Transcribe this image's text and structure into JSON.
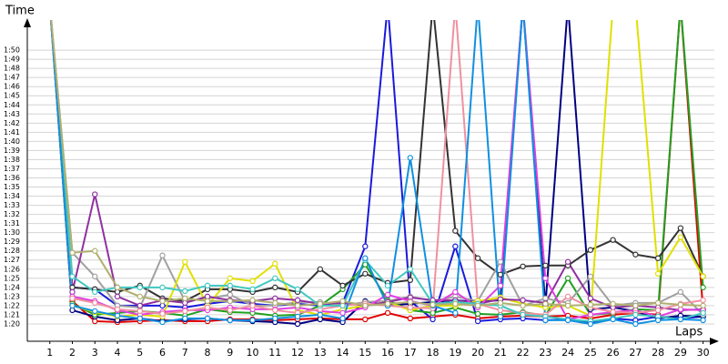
{
  "chart_data": {
    "type": "line",
    "y_label": "Time",
    "x_label": "Laps",
    "x": [
      1,
      2,
      3,
      4,
      5,
      6,
      7,
      8,
      9,
      10,
      11,
      12,
      13,
      14,
      15,
      16,
      17,
      18,
      19,
      20,
      21,
      22,
      23,
      24,
      25,
      26,
      27,
      28,
      29,
      30
    ],
    "xlim": [
      0,
      30.5
    ],
    "xticks": [
      1,
      2,
      3,
      4,
      5,
      6,
      7,
      8,
      9,
      10,
      11,
      12,
      13,
      14,
      15,
      16,
      17,
      18,
      19,
      20,
      21,
      22,
      23,
      24,
      25,
      26,
      27,
      28,
      29,
      30
    ],
    "ylim": [
      78.1,
      113.3
    ],
    "yticks": [
      {
        "value": 80,
        "label": "1:20"
      },
      {
        "value": 81,
        "label": "1:21"
      },
      {
        "value": 82,
        "label": "1:22"
      },
      {
        "value": 83,
        "label": "1:23"
      },
      {
        "value": 84,
        "label": "1:24"
      },
      {
        "value": 85,
        "label": "1:25"
      },
      {
        "value": 86,
        "label": "1:26"
      },
      {
        "value": 87,
        "label": "1:27"
      },
      {
        "value": 88,
        "label": "1:28"
      },
      {
        "value": 89,
        "label": "1:29"
      },
      {
        "value": 90,
        "label": "1:30"
      },
      {
        "value": 91,
        "label": "1:31"
      },
      {
        "value": 92,
        "label": "1:32"
      },
      {
        "value": 93,
        "label": "1:33"
      },
      {
        "value": 94,
        "label": "1:34"
      },
      {
        "value": 95,
        "label": "1:35"
      },
      {
        "value": 96,
        "label": "1:36"
      },
      {
        "value": 97,
        "label": "1:37"
      },
      {
        "value": 98,
        "label": "1:38"
      },
      {
        "value": 99,
        "label": "1:39"
      },
      {
        "value": 100,
        "label": "1:40"
      },
      {
        "value": 101,
        "label": "1:41"
      },
      {
        "value": 102,
        "label": "1:42"
      },
      {
        "value": 103,
        "label": "1:43"
      },
      {
        "value": 104,
        "label": "1:44"
      },
      {
        "value": 105,
        "label": "1:45"
      },
      {
        "value": 106,
        "label": "1:46"
      },
      {
        "value": 107,
        "label": "1:47"
      },
      {
        "value": 108,
        "label": "1:48"
      },
      {
        "value": 109,
        "label": "1:49"
      },
      {
        "value": 110,
        "label": "1:50"
      }
    ],
    "grid": true,
    "series": [
      {
        "color": "#e00000",
        "values": [
          115,
          82.5,
          80.3,
          80.2,
          80.3,
          80.4,
          80.3,
          80.3,
          80.5,
          80.5,
          80.4,
          80.5,
          80.6,
          80.5,
          80.5,
          81.2,
          80.6,
          80.8,
          81.0,
          80.6,
          80.8,
          80.9,
          80.8,
          80.9,
          80.6,
          81.0,
          81.2,
          81.0,
          115,
          81.5
        ]
      },
      {
        "color": "#1a1adc",
        "values": [
          115,
          84.0,
          83.8,
          82.0,
          82.0,
          82.0,
          81.8,
          82.2,
          82.5,
          82.2,
          82.0,
          82.2,
          82.0,
          82.3,
          88.5,
          115,
          82.5,
          80.5,
          88.5,
          80.3,
          80.5,
          80.6,
          80.4,
          80.5,
          80.2,
          80.6,
          80.4,
          80.8,
          80.6,
          80.8
        ]
      },
      {
        "color": "#000080",
        "values": [
          115,
          81.5,
          80.8,
          80.4,
          80.6,
          80.3,
          80.5,
          80.6,
          80.4,
          80.3,
          80.2,
          80.0,
          80.5,
          80.2,
          82.5,
          82.0,
          82.2,
          82.4,
          82.6,
          82.4,
          82.6,
          115,
          82.0,
          115,
          81.6,
          81.8,
          81.4,
          80.6,
          80.9,
          80.8
        ]
      },
      {
        "color": "#20a020",
        "values": [
          115,
          82.2,
          81.0,
          81.2,
          81.4,
          81.2,
          80.9,
          81.6,
          81.3,
          81.2,
          80.9,
          81.0,
          82.0,
          83.8,
          86.5,
          82.6,
          81.5,
          81.2,
          81.8,
          81.1,
          81.0,
          81.3,
          80.9,
          85.0,
          81.0,
          81.2,
          81.6,
          81.5,
          115,
          84.0
        ]
      },
      {
        "color": "#333333",
        "values": [
          115,
          84.0,
          83.8,
          83.5,
          84.2,
          82.8,
          82.5,
          83.8,
          83.8,
          83.5,
          84.0,
          83.5,
          86.0,
          84.2,
          85.5,
          84.5,
          84.8,
          115,
          90.2,
          87.2,
          85.4,
          86.3,
          86.4,
          86.4,
          88.1,
          89.2,
          87.6,
          87.2,
          90.5,
          85.2
        ]
      },
      {
        "color": "#a0a0a0",
        "values": [
          115,
          87.8,
          85.2,
          82.0,
          81.8,
          87.5,
          82.5,
          82.8,
          83.2,
          82.0,
          82.0,
          82.4,
          82.4,
          82.0,
          82.4,
          82.5,
          83.0,
          82.5,
          83.0,
          82.5,
          86.8,
          82.0,
          82.8,
          82.3,
          85.2,
          82.0,
          82.3,
          82.3,
          83.5,
          81.0
        ]
      },
      {
        "color": "#e0e000",
        "values": [
          115,
          82.0,
          81.3,
          80.8,
          81.0,
          80.8,
          86.8,
          82.0,
          85.0,
          84.7,
          86.6,
          81.5,
          81.0,
          81.6,
          82.0,
          82.4,
          81.5,
          82.0,
          82.0,
          82.5,
          82.9,
          82.2,
          81.8,
          82.0,
          80.9,
          115,
          115,
          85.5,
          89.5,
          85.2
        ]
      },
      {
        "color": "#9030a0",
        "values": [
          115,
          83.5,
          94.2,
          83.0,
          82.0,
          82.6,
          82.3,
          83.0,
          82.6,
          82.5,
          82.8,
          82.6,
          82.2,
          82.3,
          82.0,
          82.4,
          82.9,
          82.6,
          82.6,
          82.2,
          82.7,
          82.6,
          82.3,
          86.8,
          82.8,
          81.8,
          82.0,
          81.8,
          81.5,
          81.6
        ]
      },
      {
        "color": "#e040e0",
        "values": [
          115,
          83.0,
          82.5,
          81.5,
          81.0,
          81.3,
          81.5,
          81.5,
          81.8,
          81.6,
          81.6,
          81.8,
          81.4,
          81.2,
          81.8,
          83.2,
          82.5,
          82.0,
          83.5,
          81.8,
          84.2,
          115,
          85.0,
          80.5,
          81.0,
          81.3,
          81.5,
          80.8,
          81.6,
          81.5
        ]
      },
      {
        "color": "#f090a0",
        "values": [
          115,
          82.8,
          82.3,
          81.6,
          81.4,
          81.1,
          81.4,
          81.8,
          81.5,
          82.0,
          81.5,
          81.2,
          81.6,
          82.0,
          82.2,
          82.0,
          81.8,
          81.7,
          115,
          82.2,
          81.5,
          81.2,
          81.0,
          83.0,
          81.8,
          81.3,
          81.2,
          81.5,
          82.2,
          82.6
        ]
      },
      {
        "color": "#40c8c0",
        "values": [
          115,
          85.2,
          83.5,
          84.0,
          84.0,
          84.0,
          83.6,
          84.2,
          84.2,
          83.8,
          85.0,
          83.8,
          82.0,
          82.0,
          87.0,
          84.2,
          86.0,
          82.2,
          82.4,
          82.2,
          82.0,
          81.0,
          80.8,
          80.5,
          80.3,
          80.6,
          81.0,
          80.8,
          80.5,
          81.2
        ]
      },
      {
        "color": "#1090e0",
        "values": [
          115,
          82.0,
          81.4,
          80.9,
          80.6,
          80.2,
          80.6,
          80.6,
          80.4,
          80.4,
          80.6,
          80.8,
          81.0,
          80.6,
          87.2,
          82.0,
          98.2,
          82.0,
          81.2,
          115,
          80.8,
          115,
          80.4,
          80.4,
          80.0,
          80.5,
          80.0,
          80.4,
          80.5,
          80.4
        ]
      },
      {
        "color": "#b0b070",
        "values": [
          115,
          87.8,
          88.0,
          84.0,
          83.0,
          82.5,
          82.8,
          82.5,
          82.5,
          82.6,
          82.3,
          82.0,
          82.2,
          82.5,
          82.0,
          82.2,
          82.4,
          82.1,
          82.2,
          82.0,
          82.3,
          82.0,
          82.2,
          82.0,
          82.1,
          82.2,
          82.0,
          82.3,
          82.1,
          82.0
        ]
      }
    ]
  }
}
